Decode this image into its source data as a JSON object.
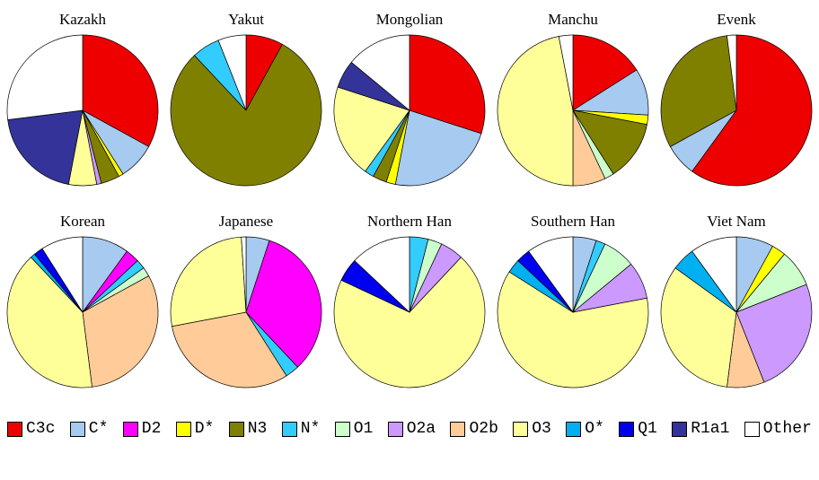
{
  "chart_data": {
    "type": "pie",
    "legend_position": "bottom",
    "categories": [
      "C3c",
      "C*",
      "D2",
      "D*",
      "N3",
      "N*",
      "O1",
      "O2a",
      "O2b",
      "O3",
      "O*",
      "Q1",
      "R1a1",
      "Other"
    ],
    "colors": [
      "#EE0000",
      "#A6CAF0",
      "#FF00FF",
      "#FFFF00",
      "#808000",
      "#33CCFF",
      "#CCFFCC",
      "#CC99FF",
      "#FFCC99",
      "#FFFF99",
      "#00B0F0",
      "#0000F0",
      "#333399",
      "#FFFFFF"
    ],
    "units": "percent",
    "charts": [
      {
        "title": "Kazakh",
        "values": [
          33,
          8,
          0,
          1,
          4,
          0,
          0,
          1,
          0,
          6,
          0,
          0,
          20,
          27
        ]
      },
      {
        "title": "Yakut",
        "values": [
          8,
          0,
          0,
          0,
          80,
          6,
          0,
          0,
          0,
          0,
          0,
          0,
          0,
          6
        ]
      },
      {
        "title": "Mongolian",
        "values": [
          30,
          23,
          0,
          2,
          3,
          2,
          0,
          0,
          0,
          20,
          0,
          0,
          6,
          14
        ]
      },
      {
        "title": "Manchu",
        "values": [
          16,
          10,
          0,
          2,
          13,
          0,
          2,
          0,
          7,
          47,
          0,
          0,
          0,
          3
        ]
      },
      {
        "title": "Evenk",
        "values": [
          60,
          7,
          0,
          0,
          31,
          0,
          0,
          0,
          0,
          0,
          0,
          0,
          0,
          2
        ]
      },
      {
        "title": "Korean",
        "values": [
          0,
          10,
          3,
          0,
          0,
          2,
          2,
          0,
          31,
          40,
          1,
          2,
          0,
          9
        ]
      },
      {
        "title": "Japanese",
        "values": [
          0,
          5,
          33,
          0,
          0,
          3,
          0,
          0,
          31,
          27,
          0,
          0,
          0,
          1
        ]
      },
      {
        "title": "Northern Han",
        "values": [
          0,
          0,
          0,
          0,
          0,
          4,
          3,
          5,
          0,
          70,
          0,
          5,
          0,
          13
        ]
      },
      {
        "title": "Southern Han",
        "values": [
          0,
          5,
          0,
          0,
          0,
          2,
          7,
          8,
          0,
          62,
          3,
          3,
          0,
          10
        ]
      },
      {
        "title": "Viet Nam",
        "values": [
          0,
          8,
          0,
          3,
          0,
          0,
          8,
          25,
          8,
          33,
          5,
          0,
          0,
          10
        ]
      }
    ]
  }
}
